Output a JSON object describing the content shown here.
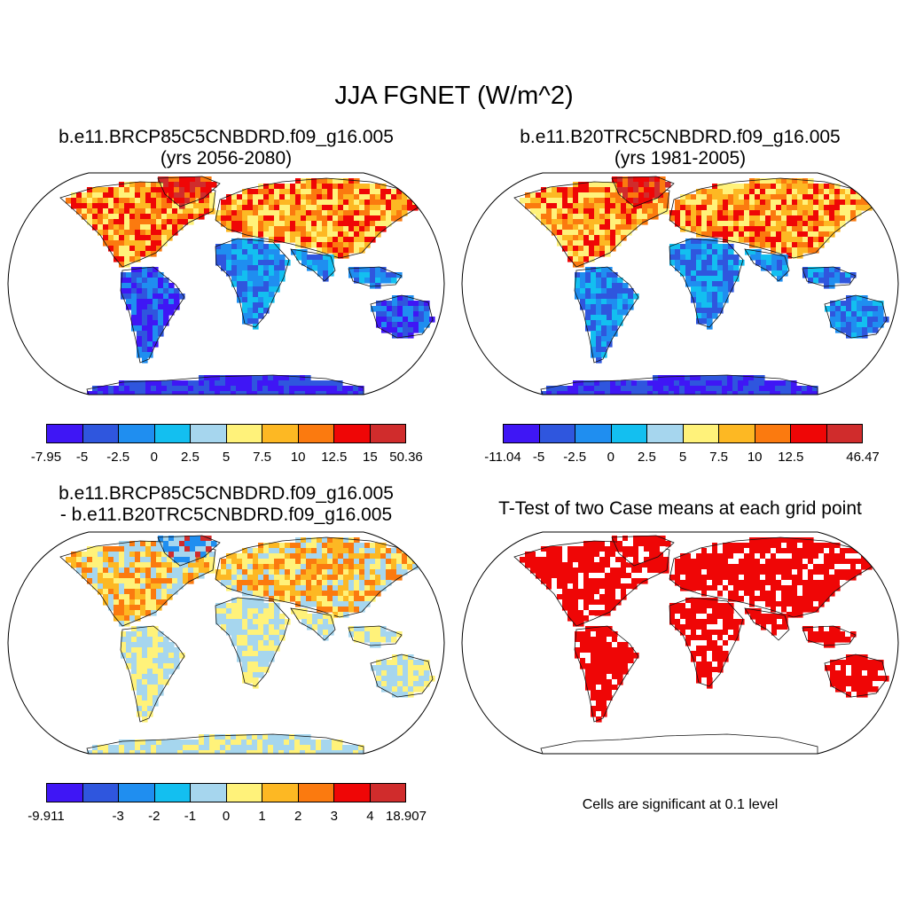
{
  "title": "JJA FGNET (W/m^2)",
  "palette": [
    "#3f16f5",
    "#2f56de",
    "#1f8ef0",
    "#13bff0",
    "#a6d6ee",
    "#fff27a",
    "#fdb823",
    "#fb7a0f",
    "#ef0606",
    "#d02c2c"
  ],
  "panels": [
    {
      "line1": "b.e11.BRCP85C5CNBDRD.f09_g16.005",
      "line2": "(yrs 2056-2080)",
      "labels": [
        "-7.95",
        "-5",
        "-2.5",
        "0",
        "2.5",
        "5",
        "7.5",
        "10",
        "12.5",
        "15",
        "50.36"
      ]
    },
    {
      "line1": "b.e11.B20TRC5CNBDRD.f09_g16.005",
      "line2": "(yrs 1981-2005)",
      "labels": [
        "-11.04",
        "-5",
        "-2.5",
        "0",
        "2.5",
        "5",
        "7.5",
        "10",
        "12.5",
        "",
        "46.47"
      ]
    },
    {
      "line1": "b.e11.BRCP85C5CNBDRD.f09_g16.005",
      "line2": "- b.e11.B20TRC5CNBDRD.f09_g16.005",
      "labels": [
        "-9.911",
        "",
        "-3",
        "-2",
        "-1",
        "0",
        "1",
        "2",
        "3",
        "4",
        "18.907"
      ]
    },
    {
      "line1": "T-Test of two Case means at each grid point",
      "line2": "",
      "note": "Cells are significant at 0.1 level"
    }
  ]
}
